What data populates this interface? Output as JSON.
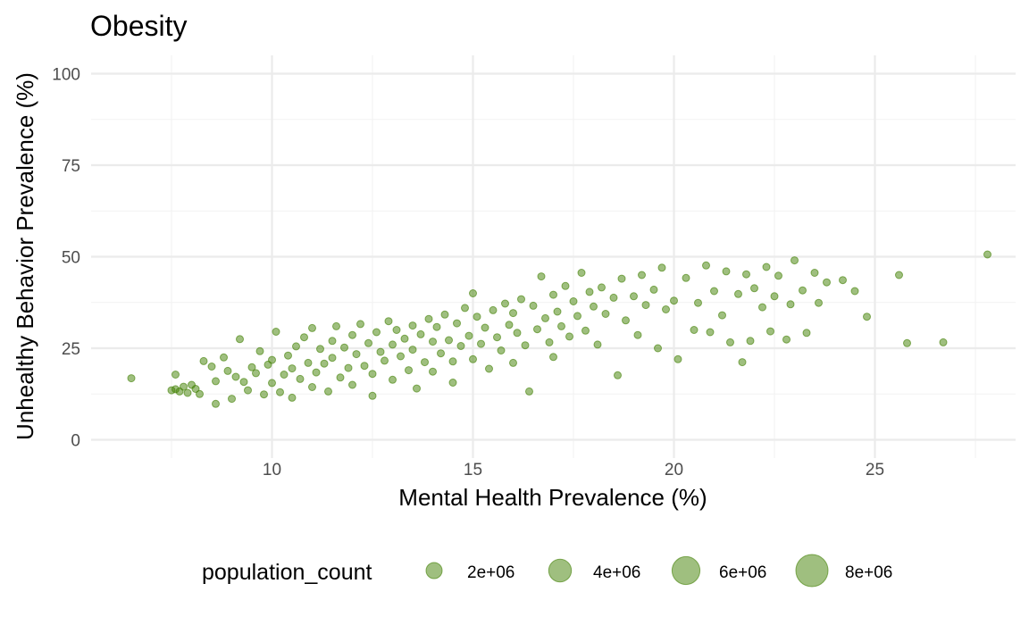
{
  "chart_data": {
    "type": "scatter",
    "title": "Obesity",
    "xlabel": "Mental Health Prevalence (%)",
    "ylabel": "Unhealthy Behavior Prevalence (%)",
    "xlim": [
      5.5,
      28.5
    ],
    "ylim": [
      -5,
      105
    ],
    "x_ticks": [
      10,
      15,
      20,
      25
    ],
    "y_ticks": [
      0,
      25,
      50,
      75,
      100
    ],
    "grid": true,
    "point_color": "#3F7F00",
    "point_opacity": 0.5,
    "legend": {
      "position": "bottom",
      "title": "population_count",
      "entries": [
        {
          "label": "2e+06",
          "value": 2000000
        },
        {
          "label": "4e+06",
          "value": 4000000
        },
        {
          "label": "6e+06",
          "value": 6000000
        },
        {
          "label": "8e+06",
          "value": 8000000
        }
      ]
    },
    "points": [
      [
        6.5,
        16.8
      ],
      [
        7.5,
        13.5
      ],
      [
        7.6,
        13.8
      ],
      [
        7.6,
        17.8
      ],
      [
        7.7,
        13.2
      ],
      [
        7.8,
        14.5
      ],
      [
        7.9,
        12.8
      ],
      [
        8.0,
        15.0
      ],
      [
        8.1,
        13.9
      ],
      [
        8.2,
        12.5
      ],
      [
        8.3,
        21.5
      ],
      [
        8.5,
        20.0
      ],
      [
        8.6,
        9.8
      ],
      [
        8.6,
        16.0
      ],
      [
        8.8,
        22.5
      ],
      [
        8.9,
        18.8
      ],
      [
        9.0,
        11.2
      ],
      [
        9.1,
        17.2
      ],
      [
        9.2,
        27.5
      ],
      [
        9.3,
        15.8
      ],
      [
        9.4,
        13.5
      ],
      [
        9.5,
        19.8
      ],
      [
        9.6,
        18.2
      ],
      [
        9.7,
        24.2
      ],
      [
        9.8,
        12.4
      ],
      [
        9.9,
        20.5
      ],
      [
        10.0,
        21.8
      ],
      [
        10.0,
        15.5
      ],
      [
        10.1,
        29.5
      ],
      [
        10.2,
        13.0
      ],
      [
        10.3,
        17.8
      ],
      [
        10.4,
        23.0
      ],
      [
        10.5,
        19.5
      ],
      [
        10.5,
        11.5
      ],
      [
        10.6,
        25.5
      ],
      [
        10.7,
        16.6
      ],
      [
        10.8,
        28.0
      ],
      [
        10.9,
        21.0
      ],
      [
        11.0,
        14.4
      ],
      [
        11.0,
        30.5
      ],
      [
        11.1,
        18.4
      ],
      [
        11.2,
        24.8
      ],
      [
        11.3,
        20.8
      ],
      [
        11.4,
        13.2
      ],
      [
        11.5,
        27.0
      ],
      [
        11.5,
        22.4
      ],
      [
        11.6,
        31.0
      ],
      [
        11.7,
        17.0
      ],
      [
        11.8,
        25.2
      ],
      [
        11.9,
        19.6
      ],
      [
        12.0,
        28.6
      ],
      [
        12.0,
        15.0
      ],
      [
        12.1,
        23.4
      ],
      [
        12.2,
        31.6
      ],
      [
        12.3,
        20.2
      ],
      [
        12.4,
        26.4
      ],
      [
        12.5,
        12.0
      ],
      [
        12.5,
        18.0
      ],
      [
        12.6,
        29.4
      ],
      [
        12.7,
        24.0
      ],
      [
        12.8,
        21.6
      ],
      [
        12.9,
        32.4
      ],
      [
        13.0,
        26.0
      ],
      [
        13.0,
        16.4
      ],
      [
        13.1,
        30.0
      ],
      [
        13.2,
        22.8
      ],
      [
        13.3,
        27.6
      ],
      [
        13.4,
        19.0
      ],
      [
        13.5,
        31.2
      ],
      [
        13.5,
        24.6
      ],
      [
        13.6,
        14.0
      ],
      [
        13.7,
        28.8
      ],
      [
        13.8,
        21.2
      ],
      [
        13.9,
        33.0
      ],
      [
        14.0,
        26.8
      ],
      [
        14.0,
        18.6
      ],
      [
        14.1,
        30.8
      ],
      [
        14.2,
        23.6
      ],
      [
        14.3,
        34.2
      ],
      [
        14.4,
        27.2
      ],
      [
        14.5,
        15.6
      ],
      [
        14.5,
        21.4
      ],
      [
        14.6,
        31.8
      ],
      [
        14.7,
        25.6
      ],
      [
        14.8,
        36.0
      ],
      [
        14.9,
        28.4
      ],
      [
        15.0,
        22.0
      ],
      [
        15.0,
        40.0
      ],
      [
        15.1,
        33.6
      ],
      [
        15.2,
        26.2
      ],
      [
        15.3,
        30.6
      ],
      [
        15.4,
        19.4
      ],
      [
        15.5,
        35.4
      ],
      [
        15.6,
        28.0
      ],
      [
        15.7,
        24.4
      ],
      [
        15.8,
        37.2
      ],
      [
        15.9,
        31.4
      ],
      [
        16.0,
        21.0
      ],
      [
        16.0,
        34.6
      ],
      [
        16.1,
        29.2
      ],
      [
        16.2,
        38.4
      ],
      [
        16.3,
        25.8
      ],
      [
        16.4,
        13.2
      ],
      [
        16.5,
        36.6
      ],
      [
        16.6,
        30.2
      ],
      [
        16.7,
        44.6
      ],
      [
        16.8,
        33.2
      ],
      [
        16.9,
        26.6
      ],
      [
        17.0,
        39.6
      ],
      [
        17.0,
        22.6
      ],
      [
        17.1,
        35.0
      ],
      [
        17.2,
        31.0
      ],
      [
        17.3,
        42.0
      ],
      [
        17.4,
        28.2
      ],
      [
        17.5,
        37.8
      ],
      [
        17.6,
        33.8
      ],
      [
        17.7,
        45.6
      ],
      [
        17.8,
        29.8
      ],
      [
        17.9,
        40.4
      ],
      [
        18.0,
        36.4
      ],
      [
        18.1,
        26.0
      ],
      [
        18.2,
        41.6
      ],
      [
        18.3,
        34.4
      ],
      [
        18.5,
        38.8
      ],
      [
        18.6,
        17.6
      ],
      [
        18.7,
        44.0
      ],
      [
        18.8,
        32.6
      ],
      [
        19.0,
        39.2
      ],
      [
        19.1,
        28.6
      ],
      [
        19.2,
        45.0
      ],
      [
        19.3,
        36.8
      ],
      [
        19.5,
        41.0
      ],
      [
        19.6,
        25.0
      ],
      [
        19.7,
        47.0
      ],
      [
        19.8,
        35.6
      ],
      [
        20.0,
        38.0
      ],
      [
        20.1,
        22.0
      ],
      [
        20.3,
        44.2
      ],
      [
        20.5,
        30.0
      ],
      [
        20.6,
        37.4
      ],
      [
        20.8,
        47.6
      ],
      [
        20.9,
        29.4
      ],
      [
        21.0,
        40.6
      ],
      [
        21.2,
        34.0
      ],
      [
        21.3,
        46.0
      ],
      [
        21.4,
        26.6
      ],
      [
        21.6,
        39.8
      ],
      [
        21.7,
        21.2
      ],
      [
        21.8,
        45.2
      ],
      [
        21.9,
        27.0
      ],
      [
        22.0,
        41.4
      ],
      [
        22.2,
        36.2
      ],
      [
        22.3,
        47.2
      ],
      [
        22.4,
        29.6
      ],
      [
        22.5,
        39.2
      ],
      [
        22.6,
        44.8
      ],
      [
        22.8,
        27.4
      ],
      [
        22.9,
        37.0
      ],
      [
        23.0,
        49.0
      ],
      [
        23.2,
        40.8
      ],
      [
        23.3,
        29.2
      ],
      [
        23.5,
        45.6
      ],
      [
        23.6,
        37.4
      ],
      [
        23.8,
        43.0
      ],
      [
        24.2,
        43.6
      ],
      [
        24.5,
        40.6
      ],
      [
        24.8,
        33.6
      ],
      [
        25.6,
        45.0
      ],
      [
        25.8,
        26.4
      ],
      [
        26.7,
        26.6
      ],
      [
        27.8,
        50.6
      ]
    ]
  }
}
